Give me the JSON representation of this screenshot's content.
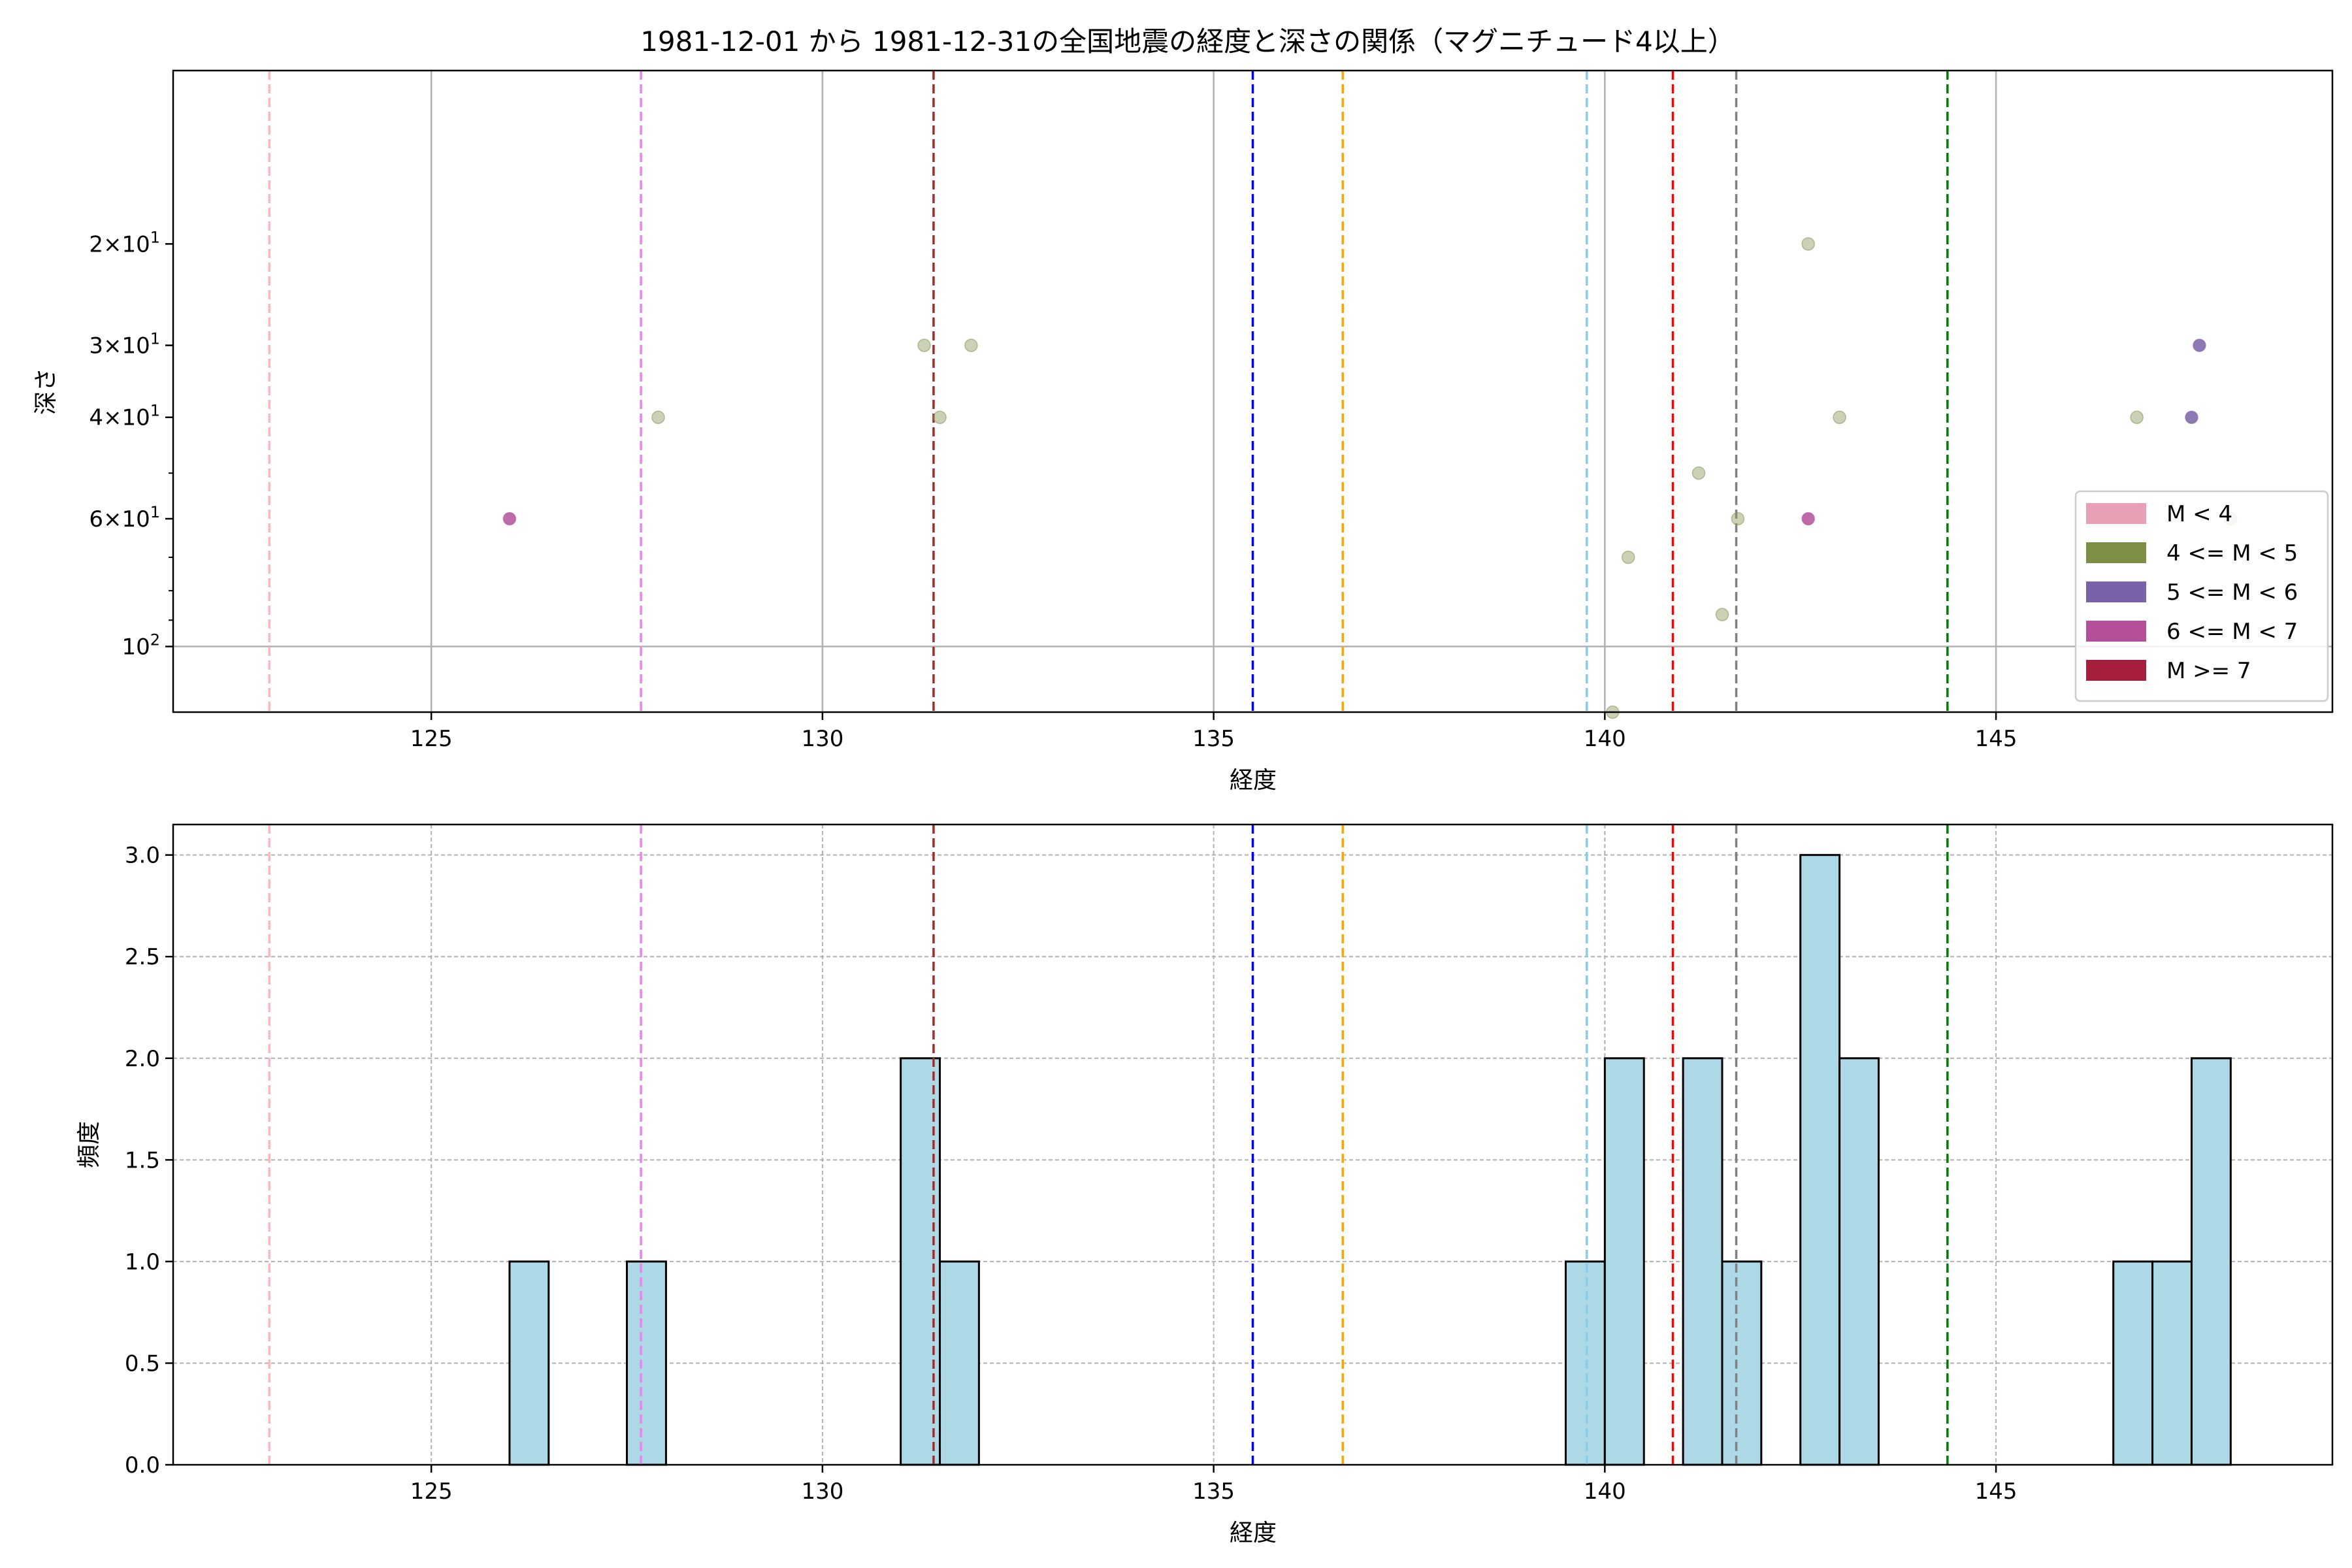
{
  "figure": {
    "title": "1981-12-01 から 1981-12-31の全国地震の経度と深さの関係（マグニチュード4以上）"
  },
  "colors": {
    "scatter_m45": "#8a9a5b",
    "scatter_m56": "#7a62a8",
    "scatter_m67": "#b4509a",
    "hist_fill": "#add8e6",
    "hist_edge": "#000000"
  },
  "legend": {
    "placement": "lower-right",
    "items": [
      {
        "label": "M < 4",
        "color": "#e7a0b4"
      },
      {
        "label": "4 <= M < 5",
        "color": "#7d8f45"
      },
      {
        "label": "5 <= M < 6",
        "color": "#7a62a8"
      },
      {
        "label": "6 <= M < 7",
        "color": "#b4509a"
      },
      {
        "label": "M >= 7",
        "color": "#a51e3c"
      }
    ]
  },
  "reference_lines": [
    {
      "x": 122.93,
      "color": "#ffb6c1"
    },
    {
      "x": 127.68,
      "color": "#ee82ee"
    },
    {
      "x": 131.42,
      "color": "#a52a2a"
    },
    {
      "x": 135.5,
      "color": "#0000ff"
    },
    {
      "x": 136.65,
      "color": "#ffa500"
    },
    {
      "x": 139.77,
      "color": "#87ceeb"
    },
    {
      "x": 140.87,
      "color": "#ff0000"
    },
    {
      "x": 141.68,
      "color": "#808080"
    },
    {
      "x": 144.38,
      "color": "#008000"
    }
  ],
  "chart_data": [
    {
      "type": "scatter",
      "xlabel": "経度",
      "ylabel": "深さ",
      "xlim": [
        121.7,
        149.3
      ],
      "ylim": [
        10,
        130
      ],
      "y_scale": "log",
      "y_inverted": true,
      "grid": true,
      "x_ticks": [
        125,
        130,
        135,
        140,
        145
      ],
      "x_tick_labels": [
        "125",
        "130",
        "135",
        "140",
        "145"
      ],
      "y_ticks": [
        20,
        30,
        40,
        60,
        100
      ],
      "y_tick_labels": [
        {
          "mant": "2",
          "exp": "1"
        },
        {
          "mant": "3",
          "exp": "1"
        },
        {
          "mant": "4",
          "exp": "1"
        },
        {
          "mant": "6",
          "exp": "1"
        },
        {
          "mant": "",
          "exp": "2"
        }
      ],
      "y_minor_ticks": [
        50,
        70,
        80,
        90
      ],
      "series": [
        {
          "name": "4 <= M < 5",
          "color_key": "scatter_m45",
          "points": [
            {
              "x": 127.9,
              "y": 40
            },
            {
              "x": 131.3,
              "y": 30
            },
            {
              "x": 131.9,
              "y": 30
            },
            {
              "x": 131.5,
              "y": 40
            },
            {
              "x": 140.1,
              "y": 130
            },
            {
              "x": 140.3,
              "y": 70
            },
            {
              "x": 141.2,
              "y": 50
            },
            {
              "x": 141.5,
              "y": 88
            },
            {
              "x": 141.7,
              "y": 60
            },
            {
              "x": 142.6,
              "y": 20
            },
            {
              "x": 143.0,
              "y": 40
            },
            {
              "x": 146.8,
              "y": 40
            },
            {
              "x": 148.0,
              "y": 60
            }
          ]
        },
        {
          "name": "5 <= M < 6",
          "color_key": "scatter_m56",
          "points": [
            {
              "x": 147.6,
              "y": 30
            },
            {
              "x": 147.5,
              "y": 40
            }
          ]
        },
        {
          "name": "6 <= M < 7",
          "color_key": "scatter_m67",
          "points": [
            {
              "x": 126.0,
              "y": 60
            },
            {
              "x": 142.6,
              "y": 60
            }
          ]
        }
      ]
    },
    {
      "type": "bar",
      "xlabel": "経度",
      "ylabel": "頻度",
      "xlim": [
        121.7,
        149.3
      ],
      "ylim": [
        0,
        3.15
      ],
      "grid": true,
      "grid_style": "dashed",
      "x_ticks": [
        125,
        130,
        135,
        140,
        145
      ],
      "x_tick_labels": [
        "125",
        "130",
        "135",
        "140",
        "145"
      ],
      "y_ticks": [
        0,
        0.5,
        1.0,
        1.5,
        2.0,
        2.5,
        3.0
      ],
      "y_tick_labels": [
        "0.0",
        "0.5",
        "1.0",
        "1.5",
        "2.0",
        "2.5",
        "3.0"
      ],
      "bins": [
        {
          "x0": 126.0,
          "x1": 126.5,
          "value": 1
        },
        {
          "x0": 127.5,
          "x1": 128.0,
          "value": 1
        },
        {
          "x0": 131.0,
          "x1": 131.5,
          "value": 2
        },
        {
          "x0": 131.5,
          "x1": 132.0,
          "value": 1
        },
        {
          "x0": 139.5,
          "x1": 140.0,
          "value": 1
        },
        {
          "x0": 140.0,
          "x1": 140.5,
          "value": 2
        },
        {
          "x0": 141.0,
          "x1": 141.5,
          "value": 2
        },
        {
          "x0": 141.5,
          "x1": 142.0,
          "value": 1
        },
        {
          "x0": 142.5,
          "x1": 143.0,
          "value": 3
        },
        {
          "x0": 143.0,
          "x1": 143.5,
          "value": 2
        },
        {
          "x0": 146.5,
          "x1": 147.0,
          "value": 1
        },
        {
          "x0": 147.0,
          "x1": 147.5,
          "value": 1
        },
        {
          "x0": 147.5,
          "x1": 148.0,
          "value": 2
        }
      ]
    }
  ]
}
